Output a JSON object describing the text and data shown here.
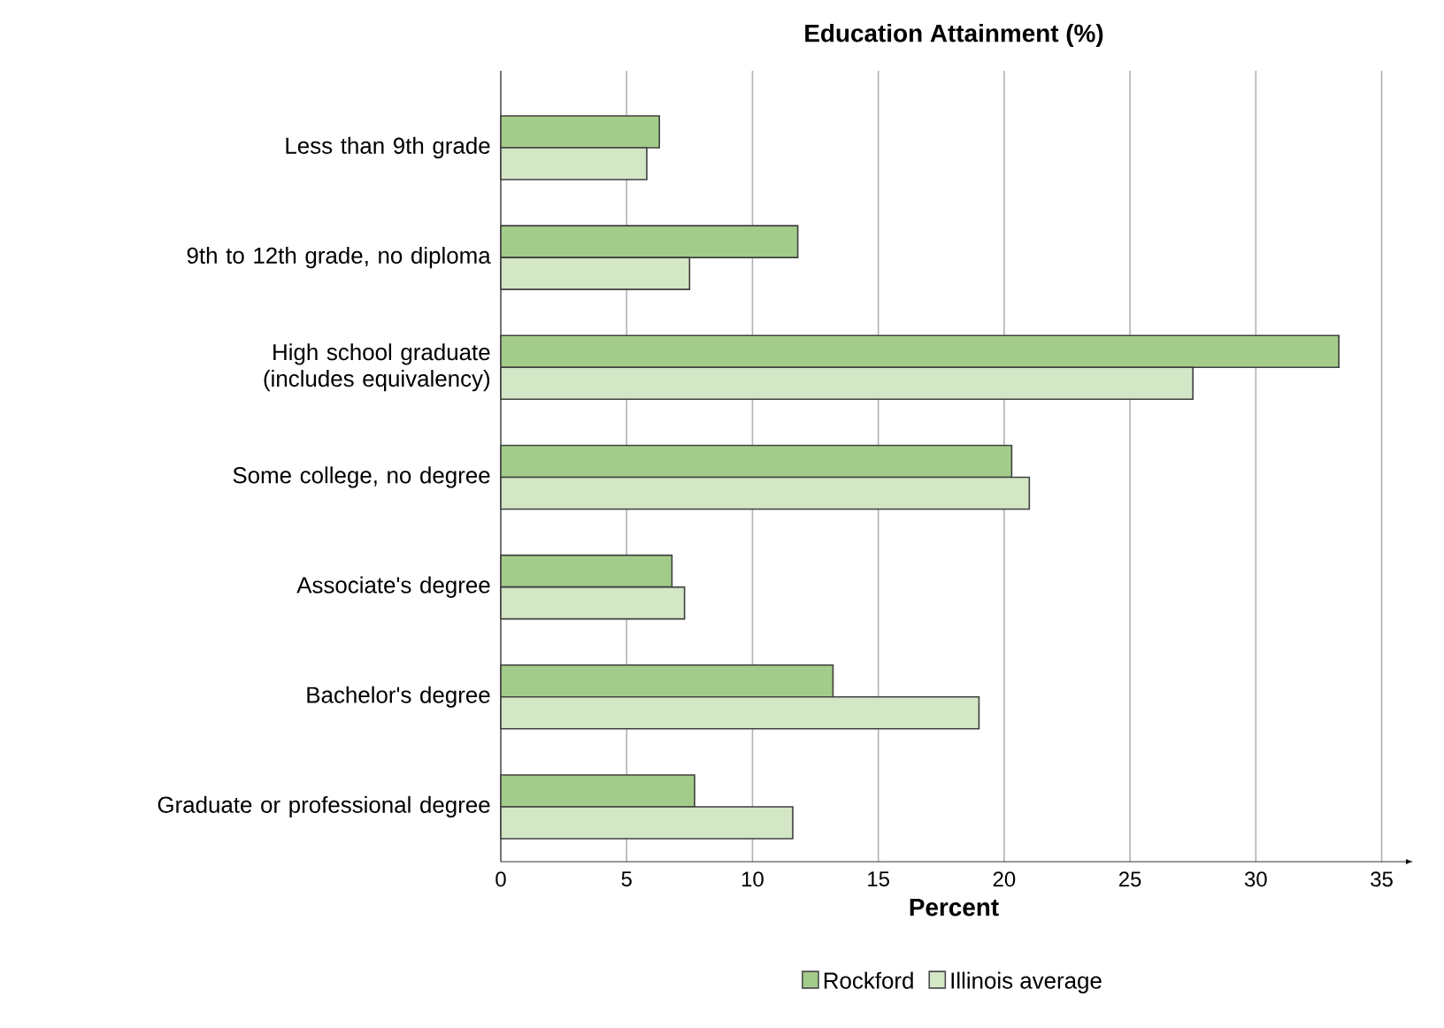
{
  "chart_data": {
    "type": "bar",
    "orientation": "horizontal",
    "title": "Education Attainment (%)",
    "xlabel": "Percent",
    "categories": [
      "Less than 9th grade",
      "9th to 12th grade, no diploma",
      "High school graduate (includes equivalency)",
      "Some college, no degree",
      "Associate's degree",
      "Bachelor's degree",
      "Graduate or professional degree"
    ],
    "series": [
      {
        "name": "Rockford",
        "color": "#a3cc8a",
        "values": [
          6.3,
          11.8,
          33.3,
          20.3,
          6.8,
          13.2,
          7.7
        ]
      },
      {
        "name": "Illinois average",
        "color": "#d3e6c6",
        "values": [
          5.8,
          7.5,
          27.5,
          21.0,
          7.3,
          19.0,
          11.6
        ]
      }
    ],
    "xlim": [
      0,
      36
    ],
    "xticks": [
      0,
      5,
      10,
      15,
      20,
      25,
      30,
      35
    ],
    "grid": "x",
    "legend": "bottom"
  }
}
